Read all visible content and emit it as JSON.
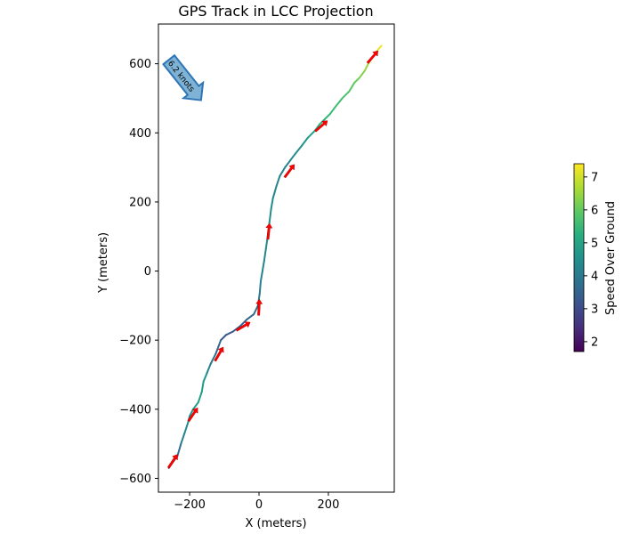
{
  "chart_data": {
    "type": "line",
    "title": "GPS Track in LCC Projection",
    "xlabel": "X (meters)",
    "ylabel": "Y (meters)",
    "xlim": [
      -290,
      390
    ],
    "ylim": [
      -640,
      715
    ],
    "x_ticks": [
      -200,
      0,
      200
    ],
    "y_ticks": [
      -600,
      -400,
      -200,
      0,
      200,
      400,
      600
    ],
    "x_tick_labels": [
      "−200",
      "0",
      "200"
    ],
    "y_tick_labels": [
      "−600",
      "−400",
      "−200",
      "0",
      "200",
      "400",
      "600"
    ],
    "grid": false,
    "series": [
      {
        "x": [
          -260,
          -250,
          -235,
          -225,
          -215,
          -205,
          -200,
          -190,
          -175,
          -165,
          -160,
          -150,
          -140,
          -125,
          -110,
          -95,
          -75,
          -55,
          -35,
          -15,
          -3,
          2,
          5,
          10,
          15,
          20,
          25,
          30,
          35,
          40,
          50,
          60,
          75,
          90,
          105,
          125,
          140,
          160,
          175,
          190,
          205,
          220,
          240,
          260,
          275,
          290,
          305,
          315,
          325,
          335,
          345,
          353
        ],
        "y": [
          -570,
          -555,
          -535,
          -500,
          -470,
          -440,
          -420,
          -400,
          -380,
          -350,
          -320,
          -295,
          -270,
          -240,
          -200,
          -185,
          -175,
          -160,
          -140,
          -125,
          -100,
          -65,
          -30,
          0,
          30,
          65,
          100,
          140,
          180,
          210,
          245,
          275,
          300,
          320,
          340,
          365,
          385,
          405,
          425,
          440,
          455,
          475,
          500,
          520,
          545,
          560,
          580,
          600,
          615,
          630,
          643,
          652
        ],
        "speed": [
          2.2,
          2.6,
          3.4,
          3.9,
          4.3,
          4.5,
          4.6,
          4.7,
          4.9,
          4.9,
          4.8,
          4.5,
          4.1,
          3.8,
          3.4,
          3.2,
          3.2,
          3.3,
          3.5,
          3.7,
          3.9,
          4.0,
          4.2,
          4.3,
          4.4,
          4.4,
          4.5,
          4.5,
          4.5,
          4.4,
          4.3,
          4.2,
          4.2,
          4.3,
          4.4,
          4.6,
          4.8,
          5.0,
          5.2,
          5.4,
          5.5,
          5.6,
          5.7,
          5.8,
          6.0,
          6.2,
          6.4,
          6.6,
          6.8,
          7.0,
          7.2,
          7.3
        ]
      }
    ],
    "direction_arrows": [
      {
        "x": -248,
        "y": -550,
        "dx": 0.55,
        "dy": 0.8
      },
      {
        "x": -190,
        "y": -415,
        "dx": 0.55,
        "dy": 0.8
      },
      {
        "x": -115,
        "y": -240,
        "dx": 0.5,
        "dy": 0.85
      },
      {
        "x": -45,
        "y": -160,
        "dx": 0.85,
        "dy": 0.5
      },
      {
        "x": 0,
        "y": -105,
        "dx": 0.05,
        "dy": 1.0
      },
      {
        "x": 28,
        "y": 115,
        "dx": 0.1,
        "dy": 1.0
      },
      {
        "x": 88,
        "y": 290,
        "dx": 0.6,
        "dy": 0.8
      },
      {
        "x": 180,
        "y": 420,
        "dx": 0.75,
        "dy": 0.65
      },
      {
        "x": 328,
        "y": 620,
        "dx": 0.65,
        "dy": 0.75
      }
    ],
    "wind_arrow": {
      "label": "6.2 knots",
      "x": -215,
      "y": 555,
      "dx": 0.62,
      "dy": -0.78
    },
    "colorbar": {
      "label": "Speed Over Ground",
      "min": 1.7,
      "max": 7.4,
      "ticks": [
        2,
        3,
        4,
        5,
        6,
        7
      ],
      "colormap": "viridis"
    }
  },
  "colors": {
    "arrow": "#ff0000",
    "wind_fill": "#7fb3d5",
    "wind_edge": "#2e75b6"
  }
}
